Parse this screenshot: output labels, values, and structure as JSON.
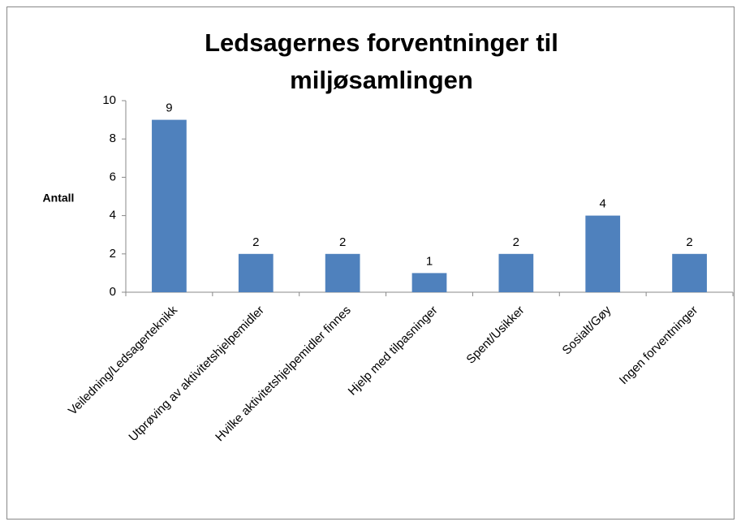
{
  "chart_data": {
    "type": "bar",
    "title": "Ledsagernes forventninger til miljøsamlingen",
    "y_label": "Antall",
    "categories": [
      "Veiledning/Ledsagerteknikk",
      "Utprøving av aktivitetshjelpemidler",
      "Hvilke aktivitetshjelpemidler  finnes",
      "Hjelp med tilpasninger",
      "Spent/Usikker",
      "Sosialt/Gøy",
      "Ingen forventninger"
    ],
    "values": [
      9,
      2,
      2,
      1,
      2,
      4,
      2
    ],
    "color": "#4f81bd",
    "ylim": [
      0,
      10
    ],
    "yticks": [
      0,
      2,
      4,
      6,
      8,
      10
    ],
    "grid": false
  }
}
